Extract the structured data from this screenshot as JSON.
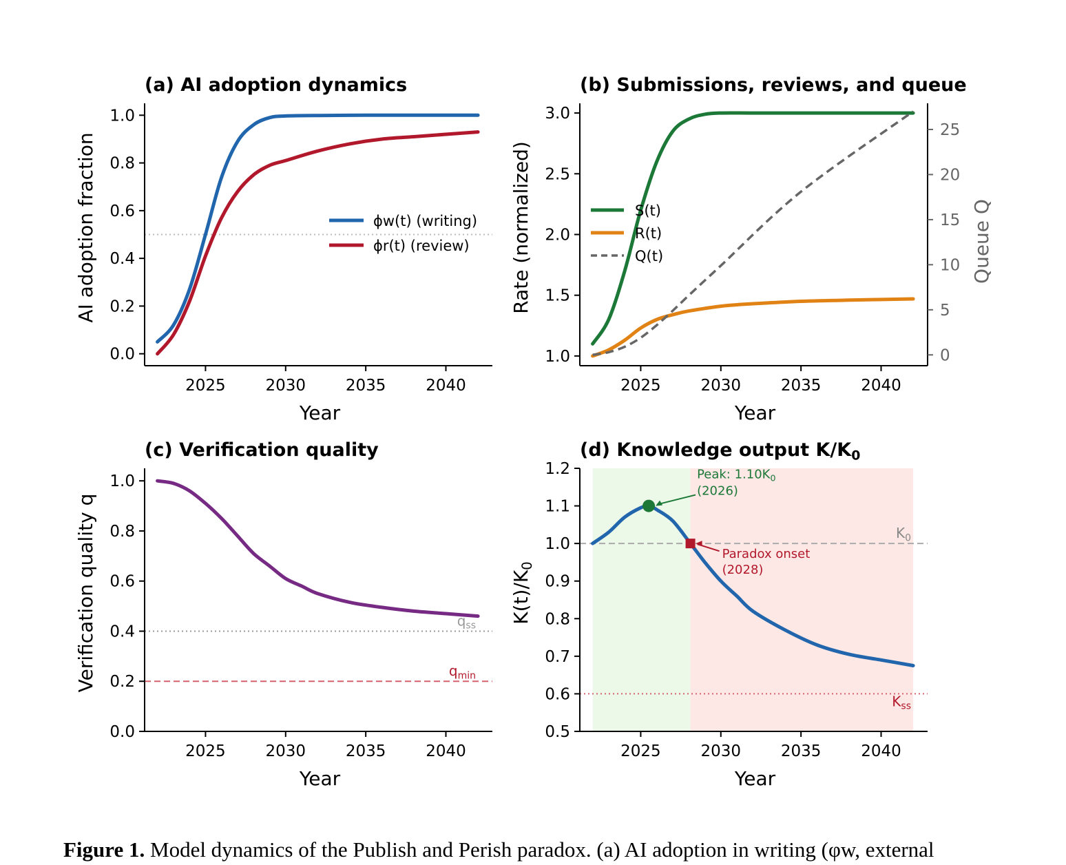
{
  "figure": {
    "caption_label": "Figure 1.",
    "caption_text": " Model dynamics of the Publish and Perish paradox. (a) AI adoption in writing (φw, external"
  },
  "chart_data": [
    {
      "id": "a",
      "type": "line",
      "title": "(a) AI adoption dynamics",
      "xlabel": "Year",
      "ylabel": "AI adoption fraction",
      "xlim": [
        2021.2,
        2042.9
      ],
      "ylim": [
        -0.05,
        1.05
      ],
      "xticks": [
        2025,
        2030,
        2035,
        2040
      ],
      "yticks": [
        0.0,
        0.2,
        0.4,
        0.6,
        0.8,
        1.0
      ],
      "ytick_labels": [
        "0.0",
        "0.2",
        "0.4",
        "0.6",
        "0.8",
        "1.0"
      ],
      "legend_position": "center-right",
      "reference_lines": [
        {
          "y": 0.5,
          "style": "dotted",
          "color": "#bbbbbb"
        }
      ],
      "series": [
        {
          "name": "ϕw(t) (writing)",
          "color": "#2166ac",
          "x": [
            2022,
            2023,
            2024,
            2025,
            2026,
            2027,
            2028,
            2029,
            2030,
            2032,
            2035,
            2038,
            2042
          ],
          "y": [
            0.05,
            0.12,
            0.27,
            0.5,
            0.74,
            0.89,
            0.96,
            0.99,
            0.997,
            0.999,
            1.0,
            1.0,
            1.0
          ]
        },
        {
          "name": "ϕr(t) (review)",
          "color": "#b2182b",
          "x": [
            2022,
            2023,
            2024,
            2025,
            2026,
            2027,
            2028,
            2029,
            2030,
            2032,
            2034,
            2036,
            2038,
            2040,
            2042
          ],
          "y": [
            0.0,
            0.08,
            0.22,
            0.41,
            0.57,
            0.68,
            0.75,
            0.79,
            0.81,
            0.85,
            0.88,
            0.9,
            0.91,
            0.92,
            0.93
          ]
        }
      ]
    },
    {
      "id": "b",
      "type": "line",
      "title": "(b) Submissions, reviews, and queue",
      "xlabel": "Year",
      "ylabel": "Rate (normalized)",
      "ylabel_right": "Queue Q",
      "xlim": [
        2021.2,
        2042.9
      ],
      "ylim": [
        0.92,
        3.08
      ],
      "ylim_right": [
        -1.2,
        27.9
      ],
      "xticks": [
        2025,
        2030,
        2035,
        2040
      ],
      "yticks": [
        1.0,
        1.5,
        2.0,
        2.5,
        3.0
      ],
      "ytick_labels": [
        "1.0",
        "1.5",
        "2.0",
        "2.5",
        "3.0"
      ],
      "yticks_right": [
        0,
        5,
        10,
        15,
        20,
        25
      ],
      "legend_position": "center-left",
      "series": [
        {
          "name": "S(t)",
          "color": "#1b7837",
          "axis": "left",
          "x": [
            2022,
            2023,
            2024,
            2025,
            2026,
            2027,
            2028,
            2029,
            2030,
            2032,
            2035,
            2042
          ],
          "y": [
            1.1,
            1.3,
            1.7,
            2.2,
            2.6,
            2.85,
            2.95,
            2.99,
            3.0,
            3.0,
            3.0,
            3.0
          ]
        },
        {
          "name": "R(t)",
          "color": "#e08214",
          "axis": "left",
          "x": [
            2022,
            2023,
            2024,
            2025,
            2026,
            2027,
            2028,
            2030,
            2032,
            2035,
            2038,
            2042
          ],
          "y": [
            1.0,
            1.05,
            1.13,
            1.23,
            1.3,
            1.34,
            1.37,
            1.41,
            1.43,
            1.45,
            1.46,
            1.47
          ]
        },
        {
          "name": "Q(t)",
          "color": "#666666",
          "axis": "right",
          "dashed": true,
          "x": [
            2022,
            2023,
            2024,
            2025,
            2026,
            2027,
            2028,
            2030,
            2035,
            2042
          ],
          "y": [
            0.0,
            0.3,
            0.9,
            1.9,
            3.3,
            4.9,
            6.6,
            9.9,
            18.1,
            27.0
          ]
        }
      ]
    },
    {
      "id": "c",
      "type": "line",
      "title": "(c) Verification quality",
      "xlabel": "Year",
      "ylabel": "Verification quality q",
      "xlim": [
        2021.2,
        2042.9
      ],
      "ylim": [
        0.0,
        1.05
      ],
      "xticks": [
        2025,
        2030,
        2035,
        2040
      ],
      "yticks": [
        0.0,
        0.2,
        0.4,
        0.6,
        0.8,
        1.0
      ],
      "ytick_labels": [
        "0.0",
        "0.2",
        "0.4",
        "0.6",
        "0.8",
        "1.0"
      ],
      "reference_lines": [
        {
          "y": 0.4,
          "style": "dotted",
          "color": "#999999",
          "label": "q",
          "label_sub": "ss"
        },
        {
          "y": 0.2,
          "style": "dashed",
          "color": "#d6606d",
          "label": "q",
          "label_sub": "min",
          "label_color": "#b2182b"
        }
      ],
      "series": [
        {
          "name": "q(t)",
          "color": "#762a83",
          "x": [
            2022,
            2023,
            2024,
            2025,
            2026,
            2027,
            2028,
            2029,
            2030,
            2031,
            2032,
            2034,
            2036,
            2038,
            2040,
            2042
          ],
          "y": [
            1.0,
            0.99,
            0.96,
            0.91,
            0.85,
            0.78,
            0.71,
            0.66,
            0.61,
            0.58,
            0.55,
            0.515,
            0.495,
            0.48,
            0.47,
            0.46
          ]
        }
      ]
    },
    {
      "id": "d",
      "type": "line",
      "title": "(d) Knowledge output K/K",
      "title_sub": "0",
      "xlabel": "Year",
      "ylabel": "K(t)/K",
      "ylabel_sub": "0",
      "xlim": [
        2021.2,
        2042.9
      ],
      "ylim": [
        0.5,
        1.2
      ],
      "xticks": [
        2025,
        2030,
        2035,
        2040
      ],
      "yticks": [
        0.5,
        0.6,
        0.7,
        0.8,
        0.9,
        1.0,
        1.1,
        1.2
      ],
      "ytick_labels": [
        "0.5",
        "0.6",
        "0.7",
        "0.8",
        "0.9",
        "1.0",
        "1.1",
        "1.2"
      ],
      "shaded_regions": [
        {
          "x0": 2022,
          "x1": 2028.1,
          "color": "#e5f5e0"
        },
        {
          "x0": 2028.1,
          "x1": 2042,
          "color": "#fde0dd"
        }
      ],
      "reference_lines": [
        {
          "y": 1.0,
          "style": "dashed",
          "color": "#aaaaaa",
          "label": "K",
          "label_sub": "0",
          "label_color": "#888888"
        },
        {
          "y": 0.6,
          "style": "dotted",
          "color": "#d6606d",
          "label": "K",
          "label_sub": "ss",
          "label_color": "#b2182b"
        }
      ],
      "annotations": [
        {
          "text": "Peak: 1.10K",
          "sub": "0",
          "text2": "(2026)",
          "x": 2025.5,
          "y": 1.1,
          "color": "#1b7837",
          "marker": "circle"
        },
        {
          "text": "Paradox onset",
          "text2": "(2028)",
          "x": 2028.1,
          "y": 1.0,
          "color": "#b2182b",
          "marker": "square"
        }
      ],
      "series": [
        {
          "name": "K(t)/K0",
          "color": "#2166ac",
          "x": [
            2022,
            2023,
            2024,
            2025,
            2025.5,
            2026,
            2027,
            2028.1,
            2029,
            2030,
            2031,
            2032,
            2034,
            2036,
            2038,
            2040,
            2042
          ],
          "y": [
            1.0,
            1.03,
            1.07,
            1.095,
            1.1,
            1.09,
            1.06,
            1.0,
            0.95,
            0.9,
            0.86,
            0.82,
            0.77,
            0.73,
            0.705,
            0.69,
            0.675
          ]
        }
      ]
    }
  ]
}
